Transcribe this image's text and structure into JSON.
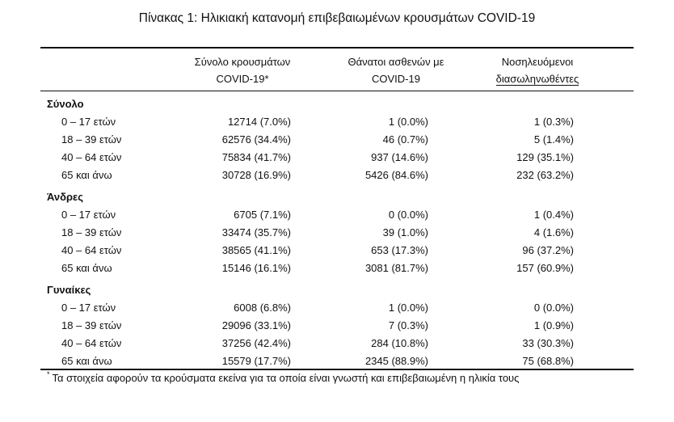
{
  "title": "Πίνακας 1: Ηλικιακή κατανομή επιβεβαιωμένων κρουσμάτων COVID-19",
  "columns": [
    {
      "line1": "Σύνολο κρουσμάτων",
      "line2": "COVID-19*"
    },
    {
      "line1": "Θάνατοι ασθενών με",
      "line2": "COVID-19"
    },
    {
      "line1": "Νοσηλευόμενοι",
      "line2": "διασωληνωθέντες"
    }
  ],
  "groups": [
    {
      "name": "Σύνολο",
      "rows": [
        {
          "age": "0 – 17 ετών",
          "cases": "12714 (7.0%)",
          "deaths": "1 (0.0%)",
          "intubated": "1 (0.3%)"
        },
        {
          "age": "18 – 39 ετών",
          "cases": "62576 (34.4%)",
          "deaths": "46 (0.7%)",
          "intubated": "5 (1.4%)"
        },
        {
          "age": "40 – 64 ετών",
          "cases": "75834 (41.7%)",
          "deaths": "937 (14.6%)",
          "intubated": "129 (35.1%)"
        },
        {
          "age": "65 και άνω",
          "cases": "30728 (16.9%)",
          "deaths": "5426 (84.6%)",
          "intubated": "232 (63.2%)"
        }
      ]
    },
    {
      "name": "Άνδρες",
      "rows": [
        {
          "age": "0 – 17 ετών",
          "cases": "6705 (7.1%)",
          "deaths": "0 (0.0%)",
          "intubated": "1 (0.4%)"
        },
        {
          "age": "18 – 39 ετών",
          "cases": "33474 (35.7%)",
          "deaths": "39 (1.0%)",
          "intubated": "4 (1.6%)"
        },
        {
          "age": "40 – 64 ετών",
          "cases": "38565 (41.1%)",
          "deaths": "653 (17.3%)",
          "intubated": "96 (37.2%)"
        },
        {
          "age": "65 και άνω",
          "cases": "15146 (16.1%)",
          "deaths": "3081 (81.7%)",
          "intubated": "157 (60.9%)"
        }
      ]
    },
    {
      "name": "Γυναίκες",
      "rows": [
        {
          "age": "0 – 17 ετών",
          "cases": "6008 (6.8%)",
          "deaths": "1 (0.0%)",
          "intubated": "0 (0.0%)"
        },
        {
          "age": "18 – 39 ετών",
          "cases": "29096 (33.1%)",
          "deaths": "7 (0.3%)",
          "intubated": "1 (0.9%)"
        },
        {
          "age": "40 – 64 ετών",
          "cases": "37256 (42.4%)",
          "deaths": "284 (10.8%)",
          "intubated": "33 (30.3%)"
        },
        {
          "age": "65 και άνω",
          "cases": "15579 (17.7%)",
          "deaths": "2345 (88.9%)",
          "intubated": "75 (68.8%)"
        }
      ]
    }
  ],
  "footnote": {
    "mark": "*",
    "text": "Τα στοιχεία αφορούν τα κρούσματα εκείνα για τα οποία είναι γνωστή και επιβεβαιωμένη η ηλικία τους"
  }
}
